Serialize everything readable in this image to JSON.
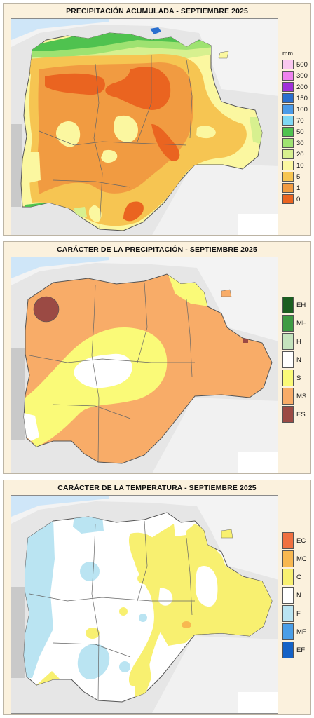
{
  "panels": [
    {
      "title": "PRECIPITACIÓN ACUMULADA - SEPTIEMBRE 2025",
      "unit": "mm",
      "legend": [
        {
          "label": "500",
          "color": "#f9c8f0"
        },
        {
          "label": "300",
          "color": "#ee82ee"
        },
        {
          "label": "200",
          "color": "#a030d8"
        },
        {
          "label": "150",
          "color": "#2a6fcf"
        },
        {
          "label": "100",
          "color": "#4b9be8"
        },
        {
          "label": "70",
          "color": "#7fd8f5"
        },
        {
          "label": "50",
          "color": "#4fc24f"
        },
        {
          "label": "30",
          "color": "#9ee271"
        },
        {
          "label": "20",
          "color": "#d7f08f"
        },
        {
          "label": "10",
          "color": "#fbf7a0"
        },
        {
          "label": "5",
          "color": "#f6c552"
        },
        {
          "label": "1",
          "color": "#f19b41"
        },
        {
          "label": "0",
          "color": "#ea6420"
        }
      ]
    },
    {
      "title": "CARÁCTER DE LA PRECIPITACIÓN - SEPTIEMBRE 2025",
      "legend": [
        {
          "label": "EH",
          "color": "#1b5e20"
        },
        {
          "label": "MH",
          "color": "#3e9b43"
        },
        {
          "label": "H",
          "color": "#c4e3bd"
        },
        {
          "label": "N",
          "color": "#ffffff"
        },
        {
          "label": "S",
          "color": "#fafa78"
        },
        {
          "label": "MS",
          "color": "#f8ac68"
        },
        {
          "label": "ES",
          "color": "#9b4a44"
        }
      ]
    },
    {
      "title": "CARÁCTER DE LA TEMPERATURA - SEPTIEMBRE 2025",
      "legend": [
        {
          "label": "EC",
          "color": "#f07040"
        },
        {
          "label": "MC",
          "color": "#f8b850"
        },
        {
          "label": "C",
          "color": "#f8f070"
        },
        {
          "label": "N",
          "color": "#ffffff"
        },
        {
          "label": "F",
          "color": "#bae4f2"
        },
        {
          "label": "MF",
          "color": "#4a9ee8"
        },
        {
          "label": "EF",
          "color": "#1462c6"
        }
      ]
    }
  ]
}
